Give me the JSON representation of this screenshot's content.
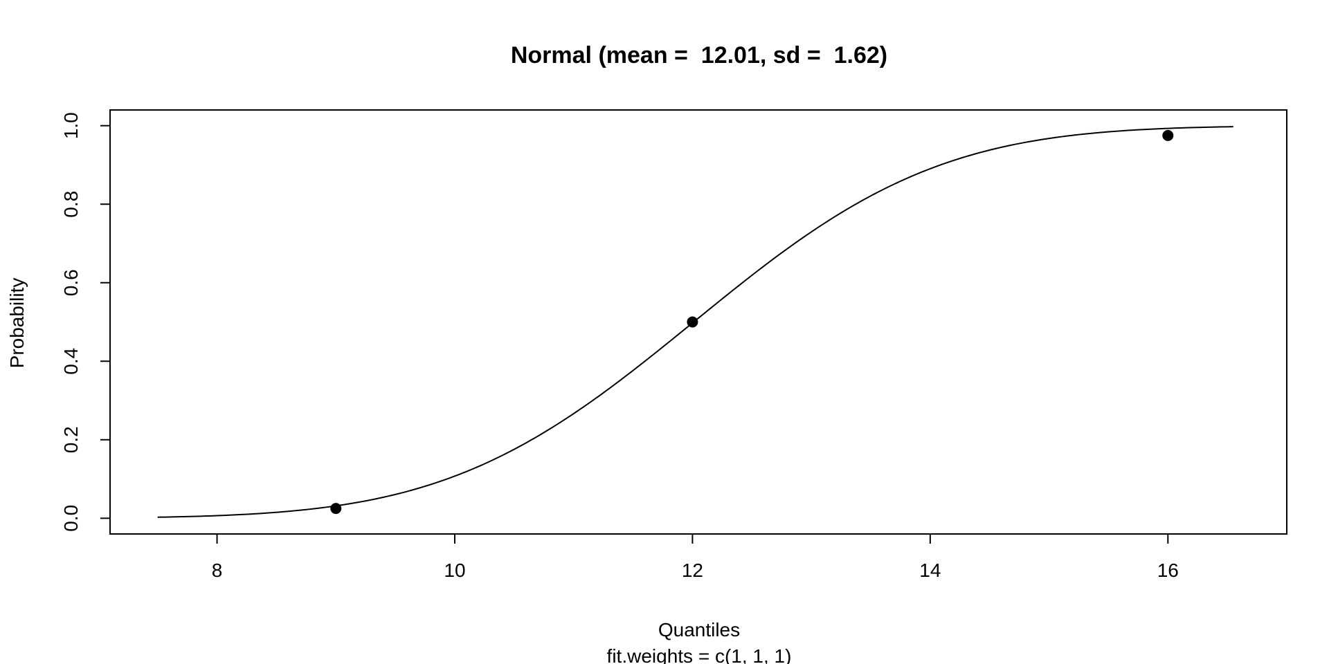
{
  "chart_data": {
    "type": "line",
    "title": "Normal (mean =  12.01, sd =  1.62)",
    "xlabel": "Quantiles",
    "sublabel": "fit.weights = c(1, 1, 1)",
    "ylabel": "Probability",
    "xlim": [
      7.1,
      17.0
    ],
    "ylim": [
      -0.04,
      1.04
    ],
    "x_ticks": [
      8,
      10,
      12,
      14,
      16
    ],
    "x_tick_labels": [
      "8",
      "10",
      "12",
      "14",
      "16"
    ],
    "y_ticks": [
      0.0,
      0.2,
      0.4,
      0.6,
      0.8,
      1.0
    ],
    "y_tick_labels": [
      "0.0",
      "0.2",
      "0.4",
      "0.6",
      "0.8",
      "1.0"
    ],
    "grid": false,
    "distribution": {
      "name": "Normal",
      "mean": 12.01,
      "sd": 1.62,
      "x_range": [
        7.5,
        16.55
      ]
    },
    "points": [
      {
        "x": 9,
        "y": 0.025
      },
      {
        "x": 12,
        "y": 0.5
      },
      {
        "x": 16,
        "y": 0.975
      }
    ],
    "colors": {
      "line": "#000000",
      "points": "#000000",
      "frame": "#000000"
    }
  }
}
